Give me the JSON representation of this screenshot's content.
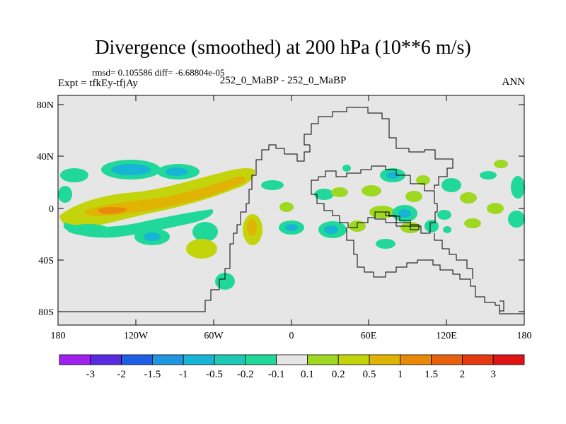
{
  "title": "Divergence (smoothed) at 200 hPa (10**6 m/s)",
  "stats": "rmsd= 0.105586 diff= -6.68804e-05",
  "expt": "Expt = tfkEy-tfjAy",
  "case": "252_0_MaBP - 252_0_MaBP",
  "season": "ANN",
  "lat_ticks": [
    "80N",
    "40N",
    "0",
    "40S",
    "80S"
  ],
  "lon_ticks": [
    "180",
    "120W",
    "60W",
    "0",
    "60E",
    "120E",
    "180"
  ],
  "colorbar": {
    "labels": [
      "-3",
      "-2",
      "-1.5",
      "-1",
      "-0.5",
      "-0.2",
      "-0.1",
      "0.1",
      "0.2",
      "0.5",
      "1",
      "1.5",
      "2",
      "3"
    ],
    "colors": [
      "#a020f0",
      "#5a2ae0",
      "#1f5fe6",
      "#1e96e0",
      "#18b4d6",
      "#1ec8b4",
      "#20d89a",
      "#e6e6e6",
      "#9ed820",
      "#c4d40c",
      "#e0b404",
      "#e88a08",
      "#e8600c",
      "#e43a10",
      "#e01414"
    ]
  },
  "colors": {
    "ocean_background": "#e6e6e6",
    "negative_small": "#20d89a",
    "negative_mid": "#18b4d6",
    "positive_small": "#9ed820",
    "positive_mid": "#c4d40c",
    "positive_high": "#e0b404",
    "positive_max": "#e88a08"
  }
}
